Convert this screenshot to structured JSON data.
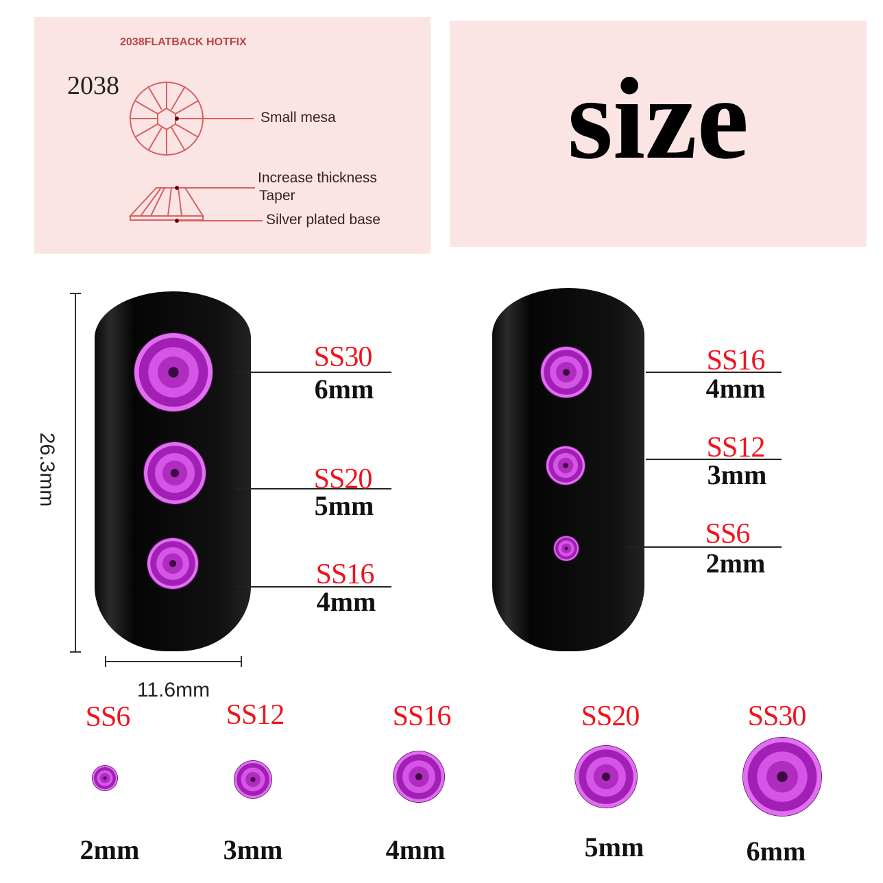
{
  "diagram": {
    "title": "2038FLATBACK HOTFIX",
    "model": "2038",
    "labels": {
      "top": "Small mesa",
      "thickness": "Increase thickness",
      "taper": "Taper",
      "base": "Silver plated base"
    }
  },
  "heading": "size",
  "dimensions": {
    "height": "26.3mm",
    "width": "11.6mm"
  },
  "left_nail": [
    {
      "ss": "SS30",
      "mm": "6mm"
    },
    {
      "ss": "SS20",
      "mm": "5mm"
    },
    {
      "ss": "SS16",
      "mm": "4mm"
    }
  ],
  "right_nail": [
    {
      "ss": "SS16",
      "mm": "4mm"
    },
    {
      "ss": "SS12",
      "mm": "3mm"
    },
    {
      "ss": "SS6",
      "mm": "2mm"
    }
  ],
  "row": [
    {
      "ss": "SS6",
      "mm": "2mm"
    },
    {
      "ss": "SS12",
      "mm": "3mm"
    },
    {
      "ss": "SS16",
      "mm": "4mm"
    },
    {
      "ss": "SS20",
      "mm": "5mm"
    },
    {
      "ss": "SS30",
      "mm": "6mm"
    }
  ],
  "colors": {
    "label_red": "#f0141e",
    "panel_pink": "#fbe5e4",
    "gem": "#c040d0"
  }
}
